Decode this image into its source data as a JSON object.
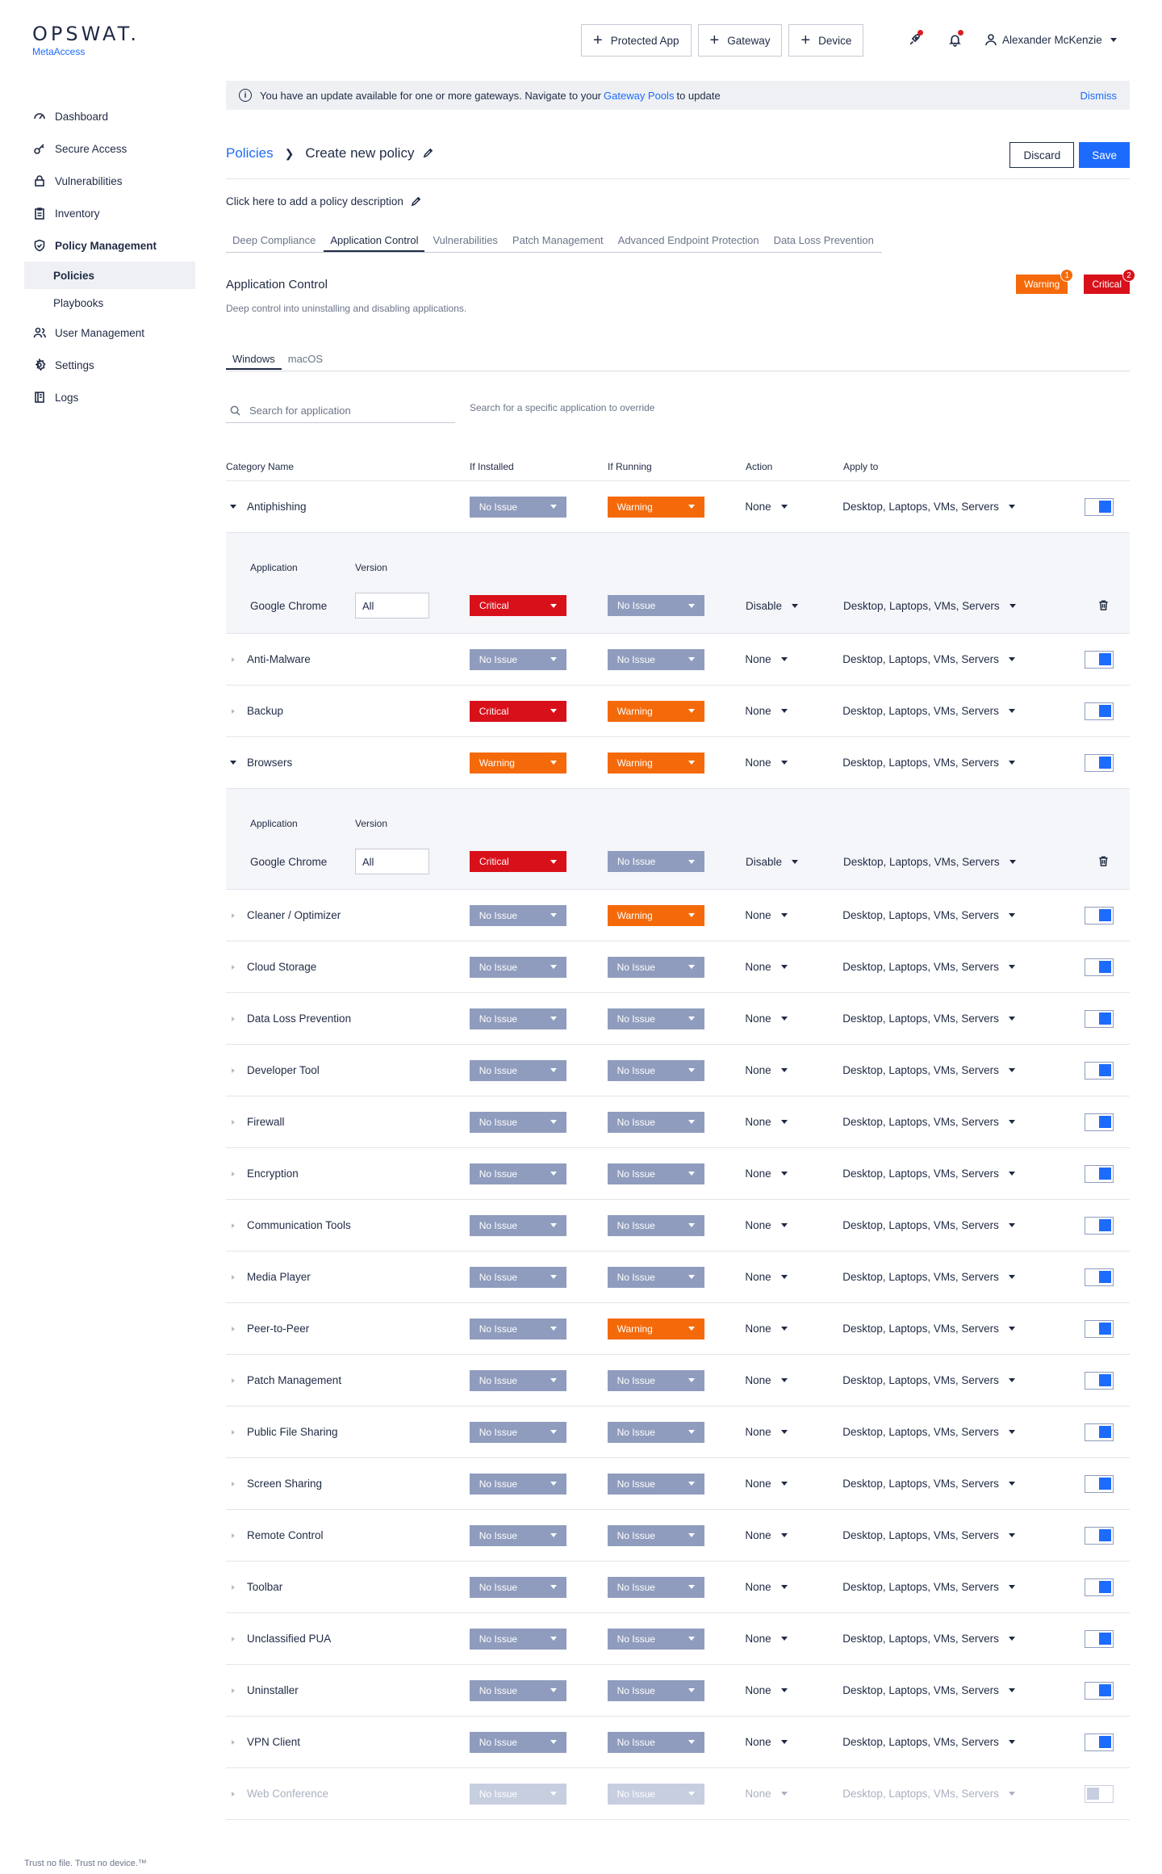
{
  "brand": {
    "name": "OPSWAT.",
    "product": "MetaAccess"
  },
  "nav": {
    "items": [
      {
        "label": "Dashboard",
        "icon": "dashboard-icon"
      },
      {
        "label": "Secure Access",
        "icon": "key-icon"
      },
      {
        "label": "Vulnerabilities",
        "icon": "lock-icon"
      },
      {
        "label": "Inventory",
        "icon": "clipboard-icon"
      },
      {
        "label": "Policy Management",
        "icon": "shield-check-icon"
      }
    ],
    "policy_sub": [
      "Policies",
      "Playbooks"
    ],
    "items2": [
      {
        "label": "User Management",
        "icon": "users-icon"
      },
      {
        "label": "Settings",
        "icon": "gear-icon"
      },
      {
        "label": "Logs",
        "icon": "logs-icon"
      }
    ]
  },
  "footer_note": "Trust no file. Trust no device.™",
  "topbar": {
    "buttons": [
      "Protected App",
      "Gateway",
      "Device"
    ],
    "user": "Alexander McKenzie"
  },
  "banner": {
    "text_before": "You have an update available for one or more gateways. Navigate to your",
    "link": "Gateway Pools",
    "text_after": "to update",
    "dismiss": "Dismiss"
  },
  "header": {
    "breadcrumb_link": "Policies",
    "title": "Create new policy",
    "discard": "Discard",
    "save": "Save",
    "description": "Click here to add a policy description"
  },
  "tabs": [
    "Deep Compliance",
    "Application Control",
    "Vulnerabilities",
    "Patch Management",
    "Advanced Endpoint Protection",
    "Data Loss Prevention"
  ],
  "active_tab": "Application Control",
  "section": {
    "title": "Application Control",
    "subtitle": "Deep control into uninstalling and disabling applications.",
    "legend": [
      {
        "label": "Warning",
        "count": "1"
      },
      {
        "label": "Critical",
        "count": "2"
      }
    ]
  },
  "os_tabs": [
    "Windows",
    "macOS"
  ],
  "search": {
    "placeholder": "Search for application",
    "hint": "Search for a specific application to override"
  },
  "table": {
    "headers": {
      "name": "Category Name",
      "installed": "If Installed",
      "running": "If Running",
      "action": "Action",
      "apply": "Apply to"
    },
    "sub_headers": {
      "application": "Application",
      "version": "Version"
    },
    "rows": [
      {
        "name": "Antiphishing",
        "installed": "No Issue",
        "running": "Warning",
        "action": "None",
        "apply": "Desktop, Laptops, VMs, Servers",
        "sub": {
          "app": "Google Chrome",
          "version": "All",
          "installed": "Critical",
          "running": "No Issue",
          "action": "Disable",
          "apply": "Desktop, Laptops, VMs, Servers"
        }
      },
      {
        "name": "Anti-Malware",
        "installed": "No Issue",
        "running": "No Issue",
        "action": "None",
        "apply": "Desktop, Laptops, VMs, Servers"
      },
      {
        "name": "Backup",
        "installed": "Critical",
        "running": "Warning",
        "action": "None",
        "apply": "Desktop, Laptops, VMs, Servers"
      },
      {
        "name": "Browsers",
        "installed": "Warning",
        "running": "Warning",
        "action": "None",
        "apply": "Desktop, Laptops, VMs, Servers",
        "sub": {
          "app": "Google Chrome",
          "version": "All",
          "installed": "Critical",
          "running": "No Issue",
          "action": "Disable",
          "apply": "Desktop, Laptops, VMs, Servers"
        }
      },
      {
        "name": "Cleaner / Optimizer",
        "installed": "No Issue",
        "running": "Warning",
        "action": "None",
        "apply": "Desktop, Laptops, VMs, Servers"
      },
      {
        "name": "Cloud Storage",
        "installed": "No Issue",
        "running": "No Issue",
        "action": "None",
        "apply": "Desktop, Laptops, VMs, Servers"
      },
      {
        "name": "Data Loss Prevention",
        "installed": "No Issue",
        "running": "No Issue",
        "action": "None",
        "apply": "Desktop, Laptops, VMs, Servers"
      },
      {
        "name": "Developer Tool",
        "installed": "No Issue",
        "running": "No Issue",
        "action": "None",
        "apply": "Desktop, Laptops, VMs, Servers"
      },
      {
        "name": "Firewall",
        "installed": "No Issue",
        "running": "No Issue",
        "action": "None",
        "apply": "Desktop, Laptops, VMs, Servers"
      },
      {
        "name": "Encryption",
        "installed": "No Issue",
        "running": "No Issue",
        "action": "None",
        "apply": "Desktop, Laptops, VMs, Servers"
      },
      {
        "name": "Communication Tools",
        "installed": "No Issue",
        "running": "No Issue",
        "action": "None",
        "apply": "Desktop, Laptops, VMs, Servers"
      },
      {
        "name": "Media Player",
        "installed": "No Issue",
        "running": "No Issue",
        "action": "None",
        "apply": "Desktop, Laptops, VMs, Servers"
      },
      {
        "name": "Peer-to-Peer",
        "installed": "No Issue",
        "running": "Warning",
        "action": "None",
        "apply": "Desktop, Laptops, VMs, Servers"
      },
      {
        "name": "Patch Management",
        "installed": "No Issue",
        "running": "No Issue",
        "action": "None",
        "apply": "Desktop, Laptops, VMs, Servers"
      },
      {
        "name": "Public File Sharing",
        "installed": "No Issue",
        "running": "No Issue",
        "action": "None",
        "apply": "Desktop, Laptops, VMs, Servers"
      },
      {
        "name": "Screen Sharing",
        "installed": "No Issue",
        "running": "No Issue",
        "action": "None",
        "apply": "Desktop, Laptops, VMs, Servers"
      },
      {
        "name": "Remote Control",
        "installed": "No Issue",
        "running": "No Issue",
        "action": "None",
        "apply": "Desktop, Laptops, VMs, Servers"
      },
      {
        "name": "Toolbar",
        "installed": "No Issue",
        "running": "No Issue",
        "action": "None",
        "apply": "Desktop, Laptops, VMs, Servers"
      },
      {
        "name": "Unclassified PUA",
        "installed": "No Issue",
        "running": "No Issue",
        "action": "None",
        "apply": "Desktop, Laptops, VMs, Servers"
      },
      {
        "name": "Uninstaller",
        "installed": "No Issue",
        "running": "No Issue",
        "action": "None",
        "apply": "Desktop, Laptops, VMs, Servers"
      },
      {
        "name": "VPN Client",
        "installed": "No Issue",
        "running": "No Issue",
        "action": "None",
        "apply": "Desktop, Laptops, VMs, Servers"
      },
      {
        "name": "Web Conference",
        "installed": "No Issue",
        "running": "No Issue",
        "action": "None",
        "apply": "Desktop, Laptops, VMs, Servers",
        "disabled": true
      }
    ]
  },
  "colors": {
    "accent": "#1d6bfc",
    "warning": "#f46a0b",
    "critical": "#d8101a",
    "no_issue": "#8f9cbd"
  }
}
